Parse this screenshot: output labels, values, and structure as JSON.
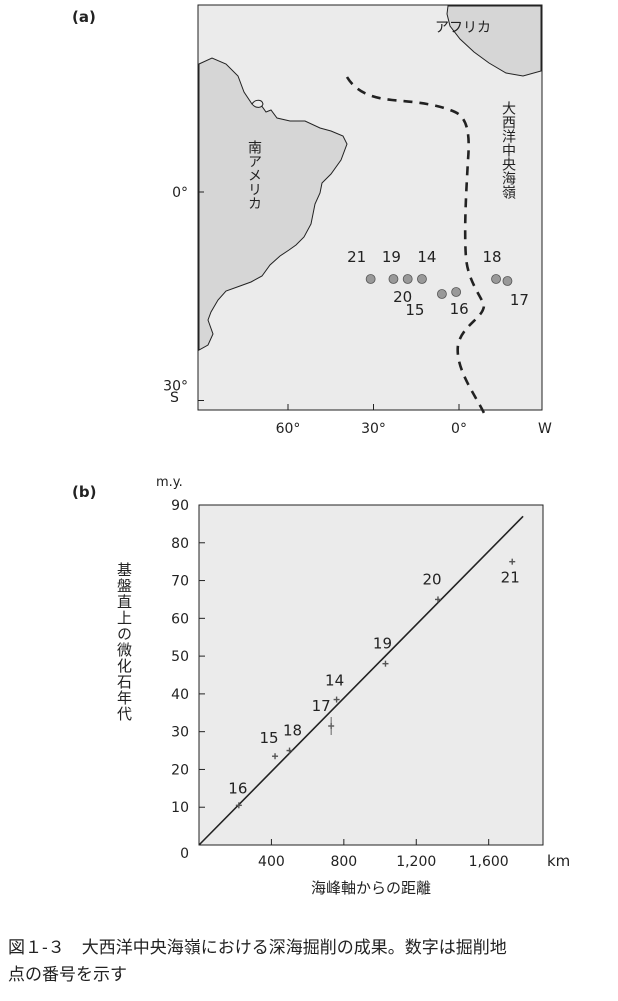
{
  "chart_data": [
    {
      "type": "scatter",
      "panel_label": "(a)",
      "x_ticks": [
        {
          "lon": 60,
          "label": "60°"
        },
        {
          "lon": 30,
          "label": "30°"
        },
        {
          "lon": 0,
          "label": "0°"
        }
      ],
      "x_unit_label": "W",
      "y_ticks": [
        {
          "lat": 0,
          "label": "0°"
        },
        {
          "lat": -30,
          "label": "30°"
        }
      ],
      "y_unit_label": "S",
      "region_labels": [
        "南アメリカ",
        "アフリカ",
        "大西洋中央海嶺"
      ],
      "sites": [
        {
          "id": "21",
          "lon": 31,
          "lat": -14
        },
        {
          "id": "19",
          "lon": 23,
          "lat": -14
        },
        {
          "id": "14",
          "lon": 13,
          "lat": -14
        },
        {
          "id": "20",
          "lon": 18,
          "lat": -14
        },
        {
          "id": "15",
          "lon": 6,
          "lat": -16
        },
        {
          "id": "16",
          "lon": 1,
          "lat": -16
        },
        {
          "id": "18",
          "lon": -13,
          "lat": -14
        },
        {
          "id": "17",
          "lon": -17,
          "lat": -14
        }
      ]
    },
    {
      "type": "scatter",
      "panel_label": "(b)",
      "ylabel": "基盤直上の微化石年代",
      "y_unit": "m.y.",
      "xlabel": "海峰軸からの距離",
      "x_unit": "km",
      "xlim": [
        0,
        1900
      ],
      "ylim": [
        0,
        90
      ],
      "x_ticks": [
        {
          "value": 400,
          "label": "400"
        },
        {
          "value": 800,
          "label": "800"
        },
        {
          "value": 1200,
          "label": "1,200"
        },
        {
          "value": 1600,
          "label": "1,600"
        }
      ],
      "y_ticks": [
        {
          "value": 0,
          "label": "0"
        },
        {
          "value": 10,
          "label": "10"
        },
        {
          "value": 20,
          "label": "20"
        },
        {
          "value": 30,
          "label": "30"
        },
        {
          "value": 40,
          "label": "40"
        },
        {
          "value": 50,
          "label": "50"
        },
        {
          "value": 60,
          "label": "60"
        },
        {
          "value": 70,
          "label": "70"
        },
        {
          "value": 80,
          "label": "80"
        },
        {
          "value": 90,
          "label": "90"
        }
      ],
      "points": [
        {
          "label": "16",
          "x": 220,
          "y": 10.5
        },
        {
          "label": "15",
          "x": 420,
          "y": 23.5
        },
        {
          "label": "18",
          "x": 500,
          "y": 25
        },
        {
          "label": "17",
          "x": 730,
          "y": 31.5
        },
        {
          "label": "14",
          "x": 760,
          "y": 38.5
        },
        {
          "label": "19",
          "x": 1030,
          "y": 48
        },
        {
          "label": "20",
          "x": 1320,
          "y": 65
        },
        {
          "label": "21",
          "x": 1730,
          "y": 75
        }
      ],
      "fit_line": {
        "x": [
          0,
          1790
        ],
        "y": [
          0,
          87
        ]
      }
    }
  ],
  "caption": {
    "line1": "図１-３　大西洋中央海嶺における深海掘削の成果。数字は掘削地",
    "line2": "点の番号を示す"
  },
  "colors": {
    "background": "#ebebeb",
    "land": "#d6d6d6",
    "site_dot": "#999999",
    "ink": "#222222"
  }
}
